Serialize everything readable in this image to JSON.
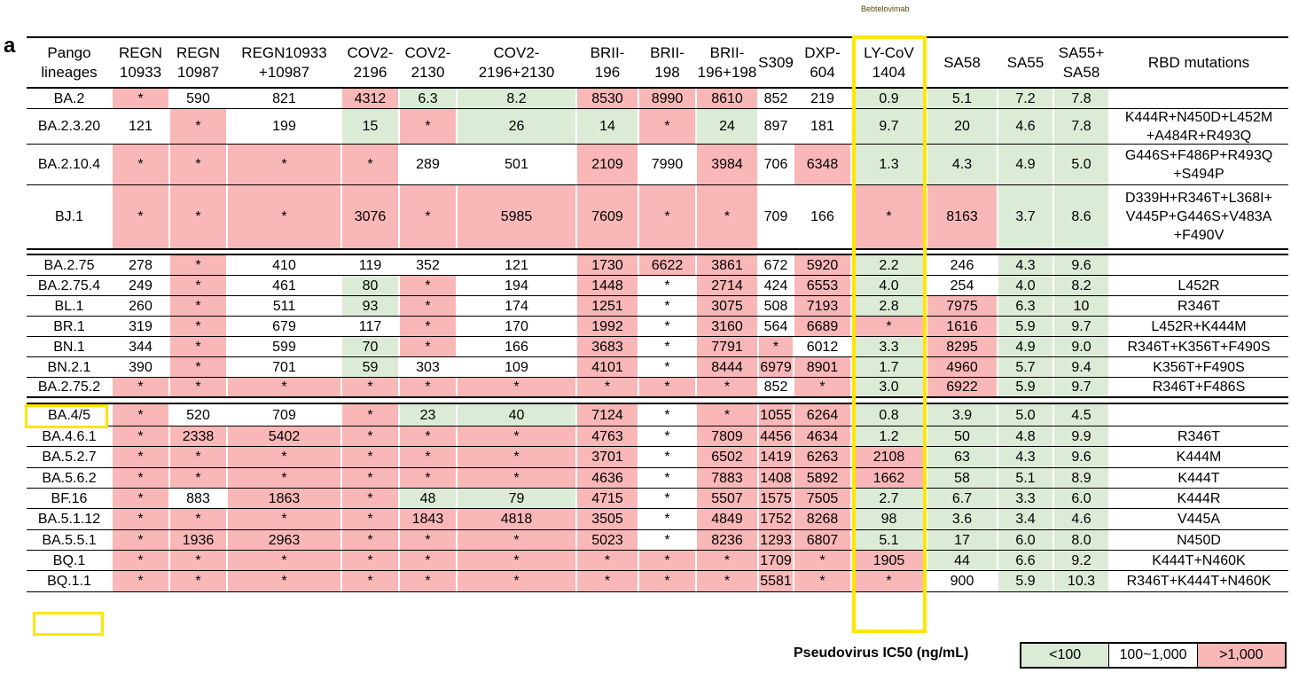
{
  "panel_label": "a",
  "top_note": "Bebtelovimab",
  "columns": [
    {
      "label": "Pango lineages",
      "lines": [
        "Pango",
        "lineages"
      ]
    },
    {
      "label": "REGN 10933",
      "lines": [
        "REGN",
        "10933"
      ]
    },
    {
      "label": "REGN 10987",
      "lines": [
        "REGN",
        "10987"
      ]
    },
    {
      "label": "REGN10933 +10987",
      "lines": [
        "REGN10933",
        "+10987"
      ]
    },
    {
      "label": "COV2- 2196",
      "lines": [
        "COV2-",
        "2196"
      ]
    },
    {
      "label": "COV2- 2130",
      "lines": [
        "COV2-",
        "2130"
      ]
    },
    {
      "label": "COV2- 2196+2130",
      "lines": [
        "COV2-",
        "2196+2130"
      ]
    },
    {
      "label": "BRII- 196",
      "lines": [
        "BRII-",
        "196"
      ]
    },
    {
      "label": "BRII- 198",
      "lines": [
        "BRII-",
        "198"
      ]
    },
    {
      "label": "BRII- 196+198",
      "lines": [
        "BRII-",
        "196+198"
      ]
    },
    {
      "label": "S309",
      "lines": [
        "S309"
      ]
    },
    {
      "label": "DXP- 604",
      "lines": [
        "DXP-",
        "604"
      ]
    },
    {
      "label": "LY-CoV 1404",
      "lines": [
        "LY-CoV",
        "1404"
      ]
    },
    {
      "label": "SA58",
      "lines": [
        "SA58"
      ]
    },
    {
      "label": "SA55",
      "lines": [
        "SA55"
      ]
    },
    {
      "label": "SA55+ SA58",
      "lines": [
        "SA55+",
        "SA58"
      ]
    },
    {
      "label": "RBD mutations",
      "lines": [
        "RBD mutations"
      ]
    }
  ],
  "rows": [
    {
      "lineage": "BA.2",
      "values": [
        "*",
        "590",
        "821",
        "4312",
        "6.3",
        "8.2",
        "8530",
        "8990",
        "8610",
        "852",
        "219",
        "0.9",
        "5.1",
        "7.2",
        "7.8"
      ],
      "colors": "PWWPGGPPPWWGGGG",
      "rbd": [
        ""
      ]
    },
    {
      "lineage": "BA.2.3.20",
      "values": [
        "121",
        "*",
        "199",
        "15",
        "*",
        "26",
        "14",
        "*",
        "24",
        "897",
        "181",
        "9.7",
        "20",
        "4.6",
        "7.8"
      ],
      "colors": "WPWGPGGPGWWGGGG",
      "rbd": [
        "K444R+N450D+L452M",
        "+A484R+R493Q"
      ]
    },
    {
      "lineage": "BA.2.10.4",
      "values": [
        "*",
        "*",
        "*",
        "*",
        "289",
        "501",
        "2109",
        "7990",
        "3984",
        "706",
        "6348",
        "1.3",
        "4.3",
        "4.9",
        "5.0"
      ],
      "colors": "PPPPWWPWPWPGGGG",
      "rbd": [
        "G446S+F486P+R493Q",
        "+S494P"
      ]
    },
    {
      "lineage": "BJ.1",
      "values": [
        "*",
        "*",
        "*",
        "3076",
        "*",
        "5985",
        "7609",
        "*",
        "*",
        "709",
        "166",
        "*",
        "8163",
        "3.7",
        "8.6"
      ],
      "colors": "PPPPPPPPPWWPPGG",
      "rbd": [
        "D339H+R346T+L368I+",
        "V445P+G446S+V483A",
        "+F490V"
      ]
    },
    {
      "lineage": "BA.2.75",
      "values": [
        "278",
        "*",
        "410",
        "119",
        "352",
        "121",
        "1730",
        "6622",
        "3861",
        "672",
        "5920",
        "2.2",
        "246",
        "4.3",
        "9.6"
      ],
      "colors": "WPWWWWPPPWPGWGG",
      "rbd": [
        ""
      ]
    },
    {
      "lineage": "BA.2.75.4",
      "values": [
        "249",
        "*",
        "461",
        "80",
        "*",
        "194",
        "1448",
        "*",
        "2714",
        "424",
        "6553",
        "4.0",
        "254",
        "4.0",
        "8.2"
      ],
      "colors": "WPWGPWPWPWPGWGG",
      "rbd": [
        "L452R"
      ]
    },
    {
      "lineage": "BL.1",
      "values": [
        "260",
        "*",
        "511",
        "93",
        "*",
        "174",
        "1251",
        "*",
        "3075",
        "508",
        "7193",
        "2.8",
        "7975",
        "6.3",
        "10"
      ],
      "colors": "WPWGPWPWPWPGPGG",
      "rbd": [
        "R346T"
      ]
    },
    {
      "lineage": "BR.1",
      "values": [
        "319",
        "*",
        "679",
        "117",
        "*",
        "170",
        "1992",
        "*",
        "3160",
        "564",
        "6689",
        "*",
        "1616",
        "5.9",
        "9.7"
      ],
      "colors": "WPWWPWPWPWPPPGG",
      "rbd": [
        "L452R+K444M"
      ]
    },
    {
      "lineage": "BN.1",
      "values": [
        "344",
        "*",
        "599",
        "70",
        "*",
        "166",
        "3683",
        "*",
        "7791",
        "*",
        "6012",
        "3.3",
        "8295",
        "4.9",
        "9.0"
      ],
      "colors": "WPWGPWPWPPWGPGG",
      "rbd": [
        "R346T+K356T+F490S"
      ]
    },
    {
      "lineage": "BN.2.1",
      "values": [
        "390",
        "*",
        "701",
        "59",
        "303",
        "109",
        "4101",
        "*",
        "8444",
        "6979",
        "8901",
        "1.7",
        "4960",
        "5.7",
        "9.4"
      ],
      "colors": "WPWGWWPWPPPGPGG",
      "rbd": [
        "K356T+F490S"
      ]
    },
    {
      "lineage": "BA.2.75.2",
      "values": [
        "*",
        "*",
        "*",
        "*",
        "*",
        "*",
        "*",
        "*",
        "*",
        "852",
        "*",
        "3.0",
        "6922",
        "5.9",
        "9.7"
      ],
      "colors": "PPPPPPPPPWPGPGG",
      "rbd": [
        "R346T+F486S"
      ]
    },
    {
      "lineage": "BA.4/5",
      "values": [
        "*",
        "520",
        "709",
        "*",
        "23",
        "40",
        "7124",
        "*",
        "*",
        "1055",
        "6264",
        "0.8",
        "3.9",
        "5.0",
        "4.5"
      ],
      "colors": "PWWPGGPWPPPGGGG",
      "rbd": [
        ""
      ]
    },
    {
      "lineage": "BA.4.6.1",
      "values": [
        "*",
        "2338",
        "5402",
        "*",
        "*",
        "*",
        "4763",
        "*",
        "7809",
        "4456",
        "4634",
        "1.2",
        "50",
        "4.8",
        "9.9"
      ],
      "colors": "PPPPPPPWPPPGGGG",
      "rbd": [
        "R346T"
      ]
    },
    {
      "lineage": "BA.5.2.7",
      "values": [
        "*",
        "*",
        "*",
        "*",
        "*",
        "*",
        "3701",
        "*",
        "6502",
        "1419",
        "6263",
        "2108",
        "63",
        "4.3",
        "9.6"
      ],
      "colors": "PPPPPPPWPPPPGGG",
      "rbd": [
        "K444M"
      ]
    },
    {
      "lineage": "BA.5.6.2",
      "values": [
        "*",
        "*",
        "*",
        "*",
        "*",
        "*",
        "4636",
        "*",
        "7883",
        "1408",
        "5892",
        "1662",
        "58",
        "5.1",
        "8.9"
      ],
      "colors": "PPPPPPPWPPPPGGG",
      "rbd": [
        "K444T"
      ]
    },
    {
      "lineage": "BF.16",
      "values": [
        "*",
        "883",
        "1863",
        "*",
        "48",
        "79",
        "4715",
        "*",
        "5507",
        "1575",
        "7505",
        "2.7",
        "6.7",
        "3.3",
        "6.0"
      ],
      "colors": "PWPPGGPWPPPGGGG",
      "rbd": [
        "K444R"
      ]
    },
    {
      "lineage": "BA.5.1.12",
      "values": [
        "*",
        "*",
        "*",
        "*",
        "1843",
        "4818",
        "3505",
        "*",
        "4849",
        "1752",
        "8268",
        "98",
        "3.6",
        "3.4",
        "4.6"
      ],
      "colors": "PPPPPPPWPPPGGGG",
      "rbd": [
        "V445A"
      ]
    },
    {
      "lineage": "BA.5.5.1",
      "values": [
        "*",
        "1936",
        "2963",
        "*",
        "*",
        "*",
        "5023",
        "*",
        "8236",
        "1293",
        "6807",
        "5.1",
        "17",
        "6.0",
        "8.0"
      ],
      "colors": "PPPPPPPWPPPGGGG",
      "rbd": [
        "N450D"
      ]
    },
    {
      "lineage": "BQ.1",
      "values": [
        "*",
        "*",
        "*",
        "*",
        "*",
        "*",
        "*",
        "*",
        "*",
        "1709",
        "*",
        "1905",
        "44",
        "6.6",
        "9.2"
      ],
      "colors": "PPPPPPPPPPPPGGG",
      "rbd": [
        "K444T+N460K"
      ]
    },
    {
      "lineage": "BQ.1.1",
      "values": [
        "*",
        "*",
        "*",
        "*",
        "*",
        "*",
        "*",
        "*",
        "*",
        "5581",
        "*",
        "*",
        "900",
        "5.9",
        "10.3"
      ],
      "colors": "PPPPPPPPPPPPWGG",
      "rbd": [
        "R346T+K444T+N460K"
      ]
    }
  ],
  "highlighted_lineages": [
    "BA.2.75.2",
    "BQ.1.1"
  ],
  "highlighted_column": "LY-CoV 1404",
  "legend": {
    "title": "Pseudovirus IC50 (ng/mL)",
    "items": [
      {
        "label": "<100",
        "color": "#dcebd6"
      },
      {
        "label": "100~1,000",
        "color": "#ffffff"
      },
      {
        "label": ">1,000",
        "color": "#f9b7b7"
      }
    ]
  },
  "colors": {
    "pink": "#f9b7b7",
    "green": "#dcebd6",
    "highlight": "#ffe600"
  }
}
